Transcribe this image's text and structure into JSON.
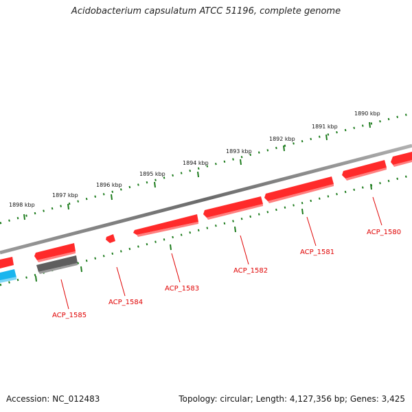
{
  "title": "Acidobacterium capsulatum ATCC 51196, complete genome",
  "accession_label": "Accession: NC_012483",
  "summary_label": "Topology: circular; Length: 4,127,356 bp; Genes: 3,425",
  "colors": {
    "backbone": "#7a7a7a",
    "forward_gene": "#ff0000",
    "reverse_gene": "#ff0000",
    "other_feature": "#606060",
    "rna_feature": "#19b5ee",
    "tick": "#1a7a1a",
    "gene_label": "#e00000"
  },
  "scale_ticks": [
    {
      "label": "1890 kbp"
    },
    {
      "label": "1891 kbp"
    },
    {
      "label": "1892 kbp"
    },
    {
      "label": "1893 kbp"
    },
    {
      "label": "1894 kbp"
    },
    {
      "label": "1895 kbp"
    },
    {
      "label": "1896 kbp"
    },
    {
      "label": "1897 kbp"
    },
    {
      "label": "1898 kbp"
    }
  ],
  "gene_labels": [
    {
      "name": "ACP_1580"
    },
    {
      "name": "ACP_1581"
    },
    {
      "name": "ACP_1582"
    },
    {
      "name": "ACP_1583"
    },
    {
      "name": "ACP_1584"
    },
    {
      "name": "ACP_1585"
    }
  ]
}
